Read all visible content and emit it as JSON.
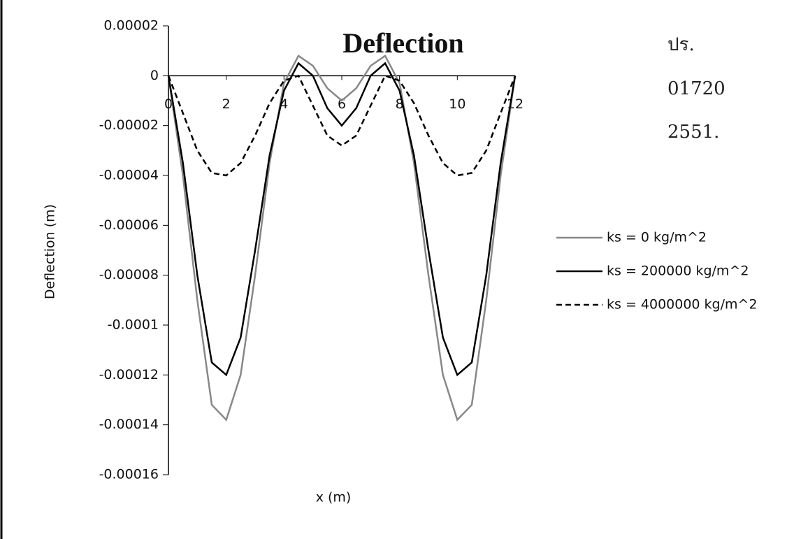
{
  "chart_data": {
    "type": "line",
    "title": "Deflection",
    "x_label": "x  (m)",
    "y_label": "Deflection (m)",
    "annotations": [
      "ปร.",
      "01720",
      "2551."
    ],
    "x": [
      0,
      0.5,
      1,
      1.5,
      2,
      2.5,
      3,
      3.5,
      4,
      4.5,
      5,
      5.5,
      6,
      6.5,
      7,
      7.5,
      8,
      8.5,
      9,
      9.5,
      10,
      10.5,
      11,
      11.5,
      12
    ],
    "xlim": [
      0,
      12
    ],
    "xticks": [
      0,
      2,
      4,
      6,
      8,
      10,
      12
    ],
    "ylim": [
      -0.00016,
      2e-05
    ],
    "yticks": [
      2e-05,
      0,
      -2e-05,
      -4e-05,
      -6e-05,
      -8e-05,
      -0.0001,
      -0.00012,
      -0.00014,
      -0.00016
    ],
    "series": [
      {
        "name": "ks = 0 kg/m^2",
        "color": "#888888",
        "dash": false,
        "values": [
          0,
          -4e-05,
          -9e-05,
          -0.000132,
          -0.000138,
          -0.00012,
          -8e-05,
          -3.5e-05,
          -3e-06,
          8e-06,
          4e-06,
          -5e-06,
          -1e-05,
          -5e-06,
          4e-06,
          8e-06,
          -3e-06,
          -3.5e-05,
          -8e-05,
          -0.00012,
          -0.000138,
          -0.000132,
          -9e-05,
          -4e-05,
          0
        ]
      },
      {
        "name": "ks = 200000 kg/m^2",
        "color": "#000000",
        "dash": false,
        "values": [
          0,
          -3.5e-05,
          -8e-05,
          -0.000115,
          -0.00012,
          -0.000105,
          -7e-05,
          -3.2e-05,
          -6e-06,
          5e-06,
          0,
          -1.3e-05,
          -2e-05,
          -1.3e-05,
          0,
          5e-06,
          -6e-06,
          -3.2e-05,
          -7e-05,
          -0.000105,
          -0.00012,
          -0.000115,
          -8e-05,
          -3.5e-05,
          0
        ]
      },
      {
        "name": "ks = 4000000 kg/m^2",
        "color": "#000000",
        "dash": true,
        "values": [
          0,
          -1.5e-05,
          -3e-05,
          -3.9e-05,
          -4e-05,
          -3.5e-05,
          -2.4e-05,
          -1.1e-05,
          -2e-06,
          0,
          -1.2e-05,
          -2.4e-05,
          -2.8e-05,
          -2.4e-05,
          -1.2e-05,
          0,
          -2e-06,
          -1.1e-05,
          -2.4e-05,
          -3.5e-05,
          -4e-05,
          -3.9e-05,
          -3e-05,
          -1.5e-05,
          0
        ]
      }
    ]
  }
}
